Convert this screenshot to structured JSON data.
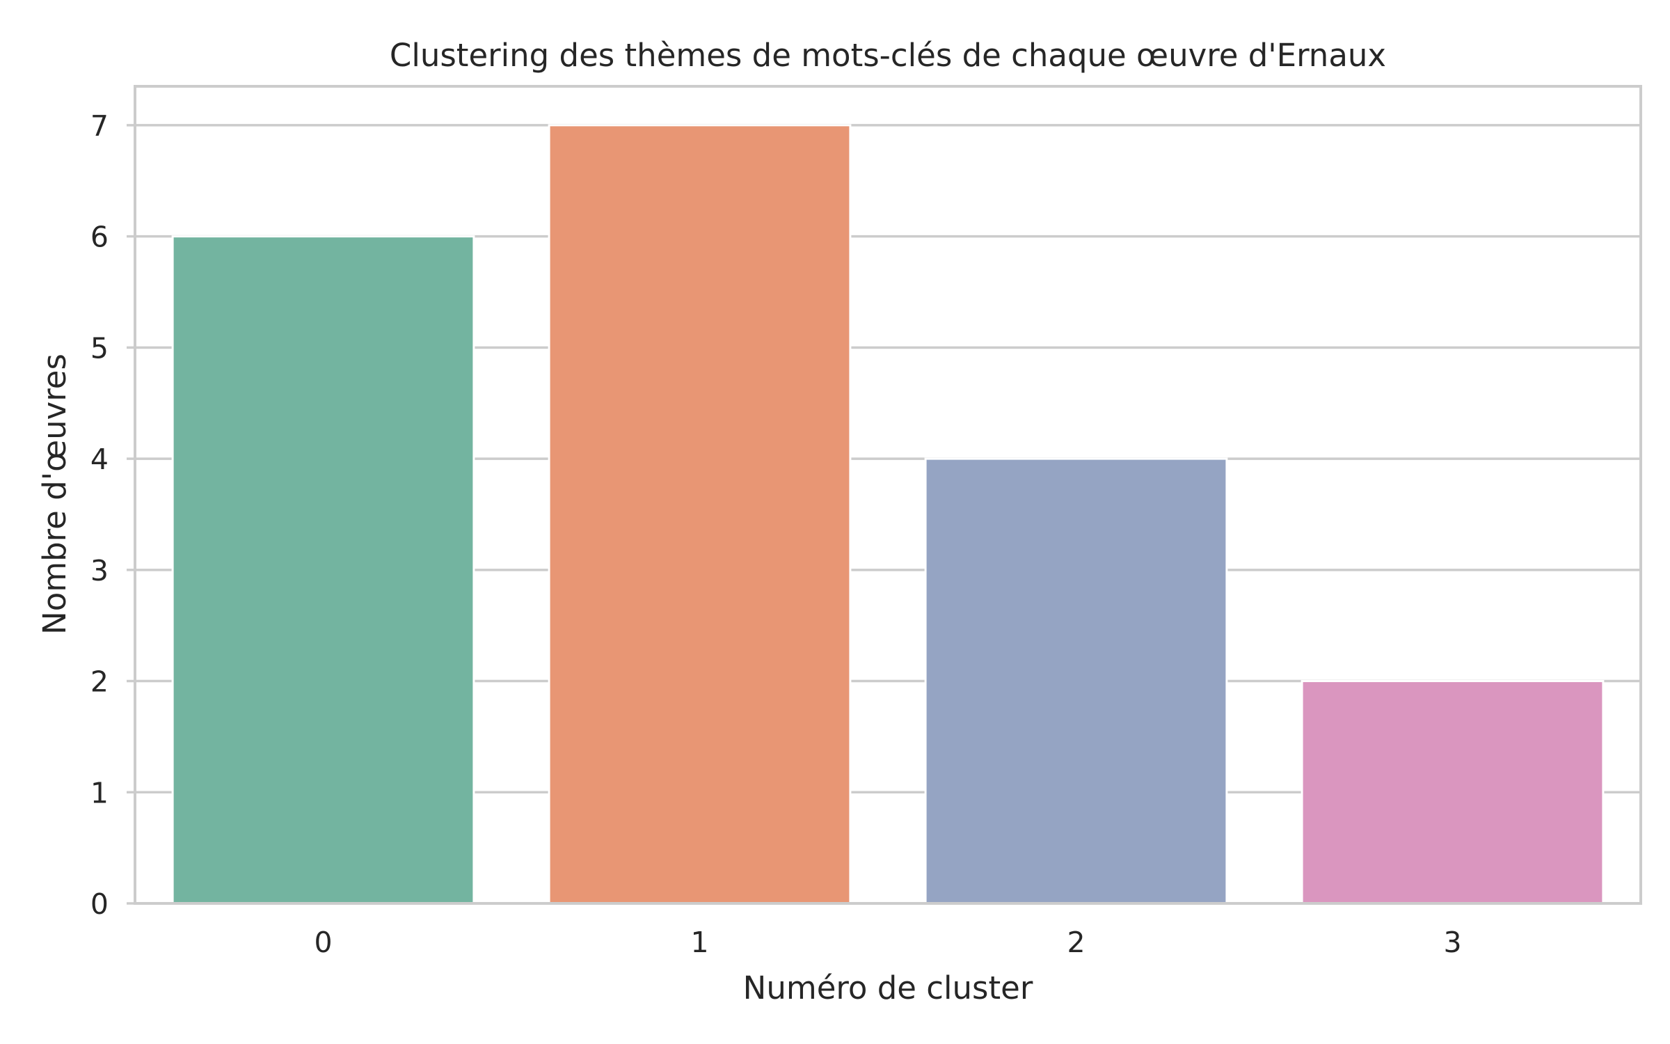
{
  "chart_data": {
    "type": "bar",
    "title": "Clustering des thèmes de mots-clés de chaque œuvre d'Ernaux",
    "xlabel": "Numéro de cluster",
    "ylabel": "Nombre d'œuvres",
    "categories": [
      "0",
      "1",
      "2",
      "3"
    ],
    "values": [
      6,
      7,
      4,
      2
    ],
    "colors": [
      "#73b4a0",
      "#e89674",
      "#95a4c3",
      "#da96bf"
    ],
    "ylim": [
      0,
      7.35
    ],
    "yticks": [
      0,
      1,
      2,
      3,
      4,
      5,
      6,
      7
    ],
    "grid": true,
    "legend": "none"
  }
}
